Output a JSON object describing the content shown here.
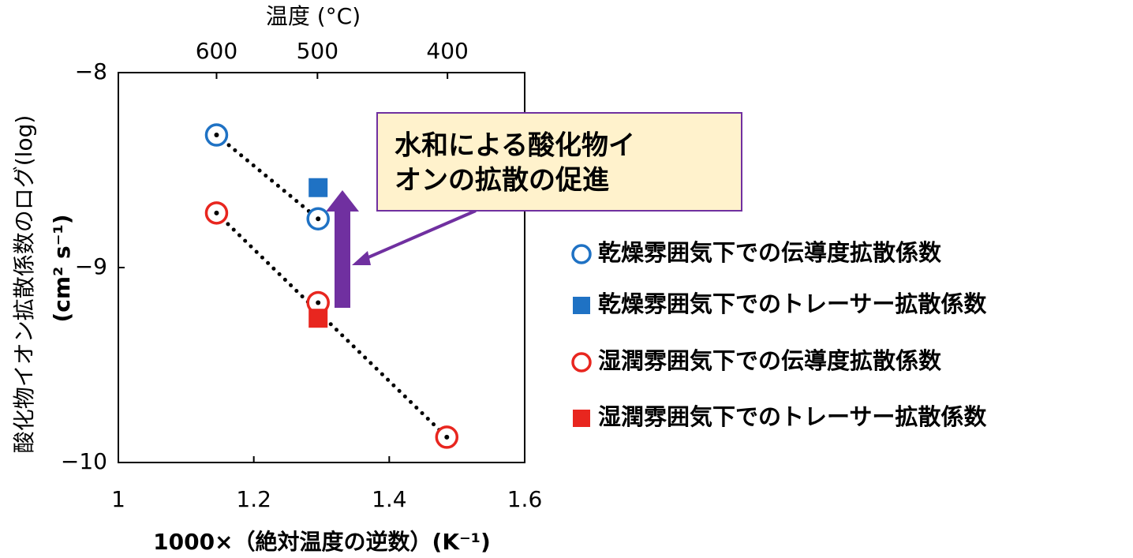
{
  "chart_data": {
    "type": "scatter",
    "top_axis_label": "温度 (°C)",
    "ylabel": [
      "酸化物イオン拡散係数のログ(log)",
      "(cm² s⁻¹)"
    ],
    "xlabel": "1000×（絶対温度の逆数）(K⁻¹)",
    "xlim": [
      1,
      1.6
    ],
    "xticks": [
      1,
      1.2,
      1.4,
      1.6
    ],
    "top_xticks": [
      {
        "value": 1.145,
        "label": "600"
      },
      {
        "value": 1.294,
        "label": "500"
      },
      {
        "value": 1.486,
        "label": "400"
      }
    ],
    "ylim": [
      -10,
      -8
    ],
    "yticks": [
      {
        "value": -10,
        "label": "−10"
      },
      {
        "value": -9,
        "label": "−9"
      },
      {
        "value": -8,
        "label": "−8"
      }
    ],
    "grid": false,
    "legend": "right",
    "series": [
      {
        "name": "乾燥雰囲気下での伝導度拡散係数",
        "color": "#1f72c4",
        "marker": "circle-open",
        "x": [
          1.145,
          1.295
        ],
        "values": [
          -8.32,
          -8.75
        ]
      },
      {
        "name": "乾燥雰囲気下でのトレーサー拡散係数",
        "color": "#1f72c4",
        "marker": "square",
        "x": [
          1.295
        ],
        "values": [
          -8.59
        ]
      },
      {
        "name": "湿潤雰囲気下での伝導度拡散係数",
        "color": "#e8261f",
        "marker": "circle-open",
        "x": [
          1.145,
          1.295,
          1.485
        ],
        "values": [
          -8.72,
          -9.18,
          -9.87
        ]
      },
      {
        "name": "湿潤雰囲気下でのトレーサー拡散係数",
        "color": "#e8261f",
        "marker": "square",
        "x": [
          1.295
        ],
        "values": [
          -9.26
        ]
      }
    ],
    "trendlines": [
      {
        "x": [
          1.145,
          1.295
        ],
        "values": [
          -8.32,
          -8.75
        ]
      },
      {
        "x": [
          1.145,
          1.485
        ],
        "values": [
          -8.72,
          -9.87
        ]
      }
    ],
    "annotation": {
      "lines": [
        "水和による酸化物イ",
        "オンの拡散の促進"
      ]
    }
  }
}
